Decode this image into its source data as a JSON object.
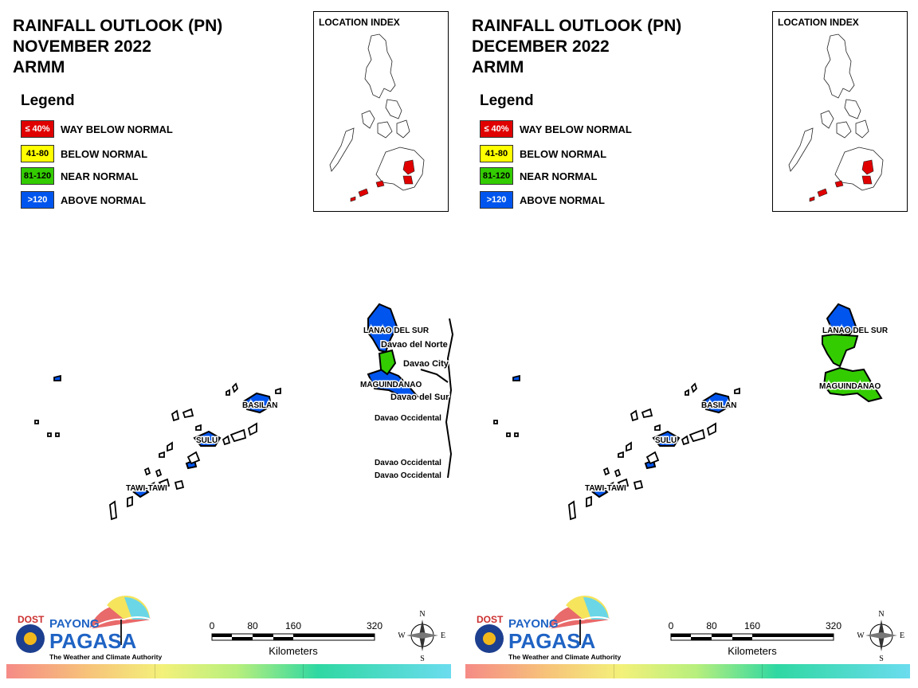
{
  "panels": [
    {
      "id": "november",
      "title_line1": "RAINFALL OUTLOOK (PN)",
      "title_line2": "NOVEMBER 2022",
      "title_line3": "ARMM",
      "index_title": "LOCATION INDEX",
      "labels": {
        "lanao": "LANAO DEL SUR",
        "maguindanao": "MAGUINDANAO",
        "basilan": "BASILAN",
        "sulu": "SULU",
        "tawi": "TAWI-TAWI",
        "davao_norte": "Davao del Norte",
        "davao_city": "Davao City",
        "davao_sur": "Davao del Sur",
        "davao_occ1": "Davao Occidental",
        "davao_occ2": "Davao Occidental",
        "davao_occ3": "Davao Occidental"
      },
      "province_category": {
        "lanao_del_sur": "above_normal",
        "maguindanao": "above_normal",
        "basilan": "above_normal",
        "sulu": "above_normal",
        "tawi_tawi": "above_normal"
      }
    },
    {
      "id": "december",
      "title_line1": "RAINFALL OUTLOOK (PN)",
      "title_line2": "DECEMBER 2022",
      "title_line3": "ARMM",
      "index_title": "LOCATION INDEX",
      "labels": {
        "lanao": "LANAO DEL SUR",
        "maguindanao": "MAGUINDANAO",
        "basilan": "BASILAN",
        "sulu": "SULU",
        "tawi": "TAWI-TAWI"
      },
      "province_category": {
        "lanao_del_sur": "near_normal",
        "maguindanao": "near_normal",
        "basilan": "above_normal",
        "sulu": "above_normal",
        "tawi_tawi": "above_normal"
      }
    }
  ],
  "legend": {
    "title": "Legend",
    "items": [
      {
        "range": "≤ 40%",
        "label": "WAY BELOW NORMAL",
        "color": "#e00000",
        "text_color": "#ffffff"
      },
      {
        "range": "41-80",
        "label": "BELOW NORMAL",
        "color": "#ffff00",
        "text_color": "#000000"
      },
      {
        "range": "81-120",
        "label": "NEAR NORMAL",
        "color": "#33cc00",
        "text_color": "#000000"
      },
      {
        "range": ">120",
        "label": "ABOVE NORMAL",
        "color": "#0055ee",
        "text_color": "#ffffff"
      }
    ]
  },
  "scale": {
    "ticks": [
      "0",
      "80",
      "160",
      "320"
    ],
    "unit": "Kilometers"
  },
  "compass": {
    "n": "N",
    "e": "E",
    "s": "S",
    "w": "W"
  },
  "branding": {
    "dost": "DOST",
    "payong": "PAYONG",
    "pagasa": "PAGASA",
    "tagline": "The Weather and Climate Authority"
  },
  "colors": {
    "above": "#0055ee",
    "near": "#33cc00",
    "way_below": "#e00000"
  }
}
